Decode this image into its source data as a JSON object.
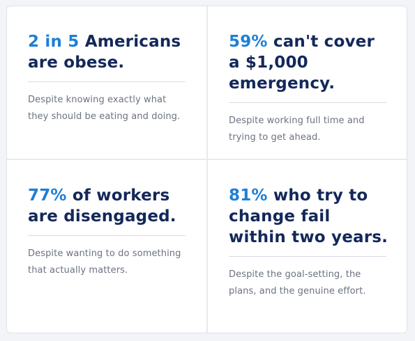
{
  "cards": [
    {
      "stat": "2 in 5",
      "rest": " Americans are obese.",
      "desc": "Despite knowing exactly what they should be eating and doing."
    },
    {
      "stat": "59%",
      "rest": " can't cover a $1,000 emergency.",
      "desc": "Despite working full time and trying to get ahead."
    },
    {
      "stat": "77%",
      "rest": " of workers are disengaged.",
      "desc": "Despite wanting to do something that actually matters."
    },
    {
      "stat": "81%",
      "rest": " who try to change fail within two years.",
      "desc": "Despite the goal-setting, the plans, and the genuine effort."
    }
  ],
  "colors": {
    "accent": "#1e7fd6",
    "headline": "#13285a",
    "body": "#6b7280"
  }
}
